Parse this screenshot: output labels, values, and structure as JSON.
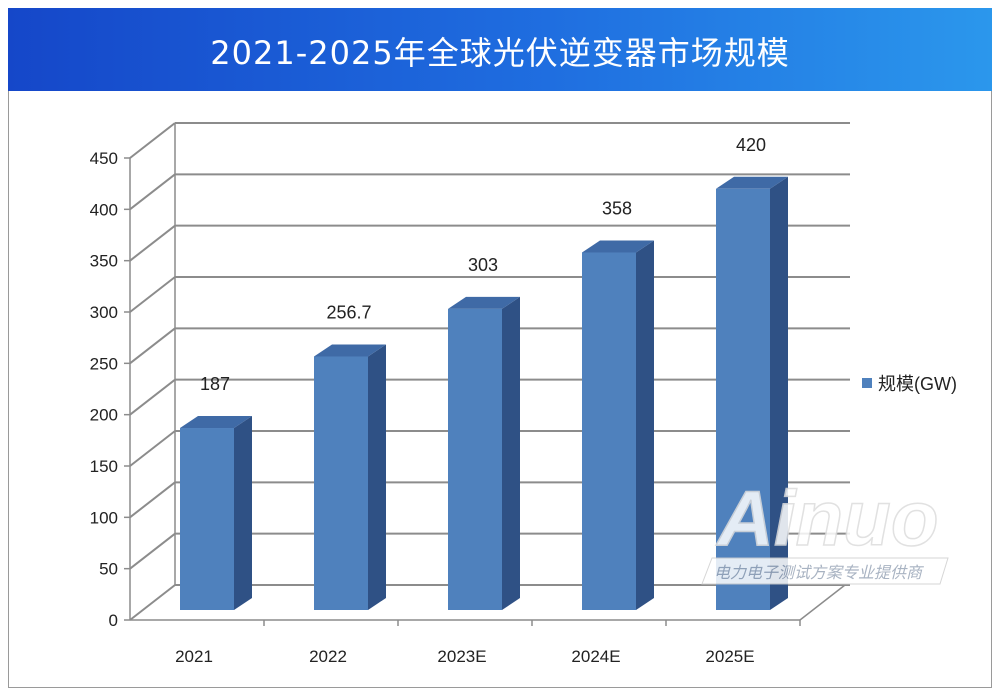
{
  "chart_data": {
    "type": "bar",
    "title": "2021-2025年全球光伏逆变器市场规模",
    "categories": [
      "2021",
      "2022",
      "2023E",
      "2024E",
      "2025E"
    ],
    "series": [
      {
        "name": "规模(GW)",
        "values": [
          187,
          256.7,
          303,
          358,
          420
        ],
        "color": "#4f81bd"
      }
    ],
    "data_labels": [
      "187",
      "256.7",
      "303",
      "358",
      "420"
    ],
    "ylim": [
      0,
      450
    ],
    "yticks": [
      "0",
      "50",
      "100",
      "150",
      "200",
      "250",
      "300",
      "350",
      "400",
      "450"
    ],
    "grid": true,
    "legend": "right",
    "style": "3d-column"
  },
  "watermark": {
    "brand": "Ainuo",
    "tagline": "电力电子测试方案专业提供商"
  },
  "colors": {
    "header_start": "#1547c9",
    "header_end": "#2b97ec"
  }
}
